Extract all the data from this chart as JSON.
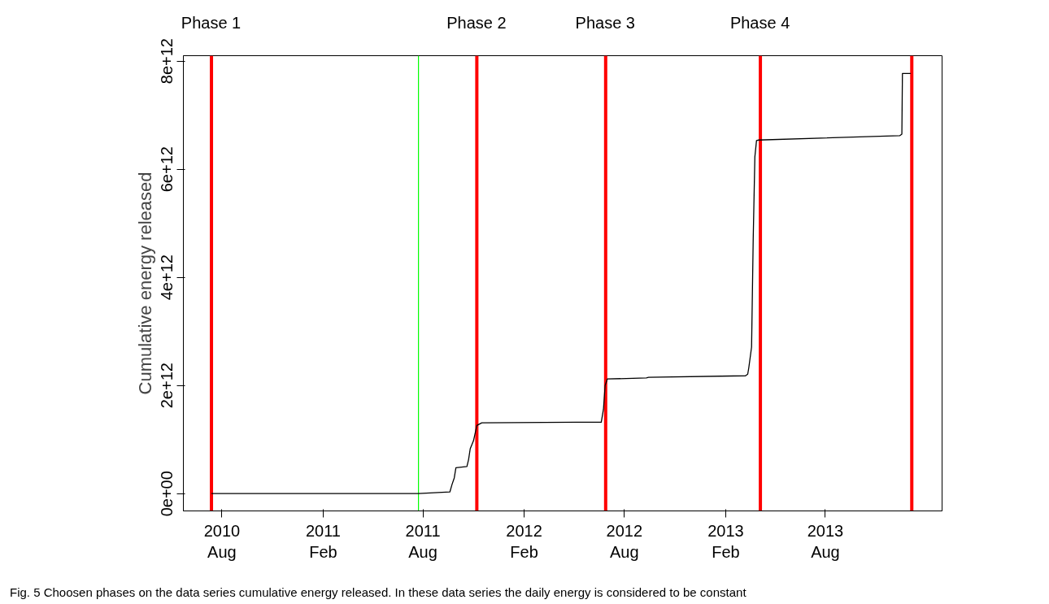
{
  "chart_data": {
    "type": "line",
    "ylabel": "Cumulative energy released",
    "x": [
      "2010-07-13",
      "2011-07-24",
      "2011-09-19",
      "2011-09-23",
      "2011-09-27",
      "2011-09-30",
      "2011-10-20",
      "2011-10-23",
      "2011-10-26",
      "2011-11-01",
      "2011-11-07",
      "2011-11-16",
      "2012-05-05",
      "2012-06-20",
      "2012-06-24",
      "2012-06-27",
      "2012-07-01",
      "2012-09-10",
      "2012-09-14",
      "2013-03-09",
      "2013-03-13",
      "2013-03-15",
      "2013-03-20",
      "2013-03-23",
      "2013-03-26",
      "2013-03-29",
      "2013-04-02",
      "2013-12-14",
      "2013-12-18",
      "2013-12-19",
      "2014-01-03"
    ],
    "series": [
      {
        "color": "#000000",
        "values": [
          0,
          0,
          30000000000.0,
          170000000000.0,
          290000000000.0,
          480000000000.0,
          500000000000.0,
          630000000000.0,
          830000000000.0,
          980000000000.0,
          1260000000000.0,
          1310000000000.0,
          1320000000000.0,
          1320000000000.0,
          1560000000000.0,
          2000000000000.0,
          2120000000000.0,
          2140000000000.0,
          2150000000000.0,
          2180000000000.0,
          2210000000000.0,
          2330000000000.0,
          2710000000000.0,
          4720000000000.0,
          6230000000000.0,
          6530000000000.0,
          6540000000000.0,
          6620000000000.0,
          6650000000000.0,
          7770000000000.0,
          7770000000000.0
        ]
      }
    ],
    "xlim": [
      "2010-05-23",
      "2014-03-01"
    ],
    "xticks": [
      {
        "value": "2010-08-01",
        "label": "2010\nAug"
      },
      {
        "value": "2011-02-01",
        "label": "2011\nFeb"
      },
      {
        "value": "2011-08-01",
        "label": "2011\nAug"
      },
      {
        "value": "2012-02-01",
        "label": "2012\nFeb"
      },
      {
        "value": "2012-08-01",
        "label": "2012\nAug"
      },
      {
        "value": "2013-02-01",
        "label": "2013\nFeb"
      },
      {
        "value": "2013-08-01",
        "label": "2013\nAug"
      }
    ],
    "ylim": [
      -320000000000.0,
      8100000000000.0
    ],
    "yticks": [
      {
        "value": 0,
        "label": "0e+00"
      },
      {
        "value": 2000000000000.0,
        "label": "2e+12"
      },
      {
        "value": 4000000000000.0,
        "label": "4e+12"
      },
      {
        "value": 6000000000000.0,
        "label": "6e+12"
      },
      {
        "value": 8000000000000.0,
        "label": "8e+12"
      }
    ],
    "grid": false,
    "line_style": "solid",
    "ref_lines": [
      {
        "axis": "x",
        "value": "2010-07-13",
        "label": "Phase 1",
        "color": "#ff0000"
      },
      {
        "axis": "x",
        "value": "2011-07-24",
        "label": null,
        "color": "#00ff00"
      },
      {
        "axis": "x",
        "value": "2011-11-07",
        "label": "Phase 2",
        "color": "#ff0000"
      },
      {
        "axis": "x",
        "value": "2012-06-28",
        "label": "Phase 3",
        "color": "#ff0000"
      },
      {
        "axis": "x",
        "value": "2013-04-05",
        "label": "Phase 4",
        "color": "#ff0000"
      },
      {
        "axis": "x",
        "value": "2014-01-05",
        "label": null,
        "color": "#ff0000"
      }
    ],
    "annotations": [
      "Fig. 5  Choosen phases on the data series cumulative energy released. In these data series the daily energy is considered to be constant"
    ]
  }
}
